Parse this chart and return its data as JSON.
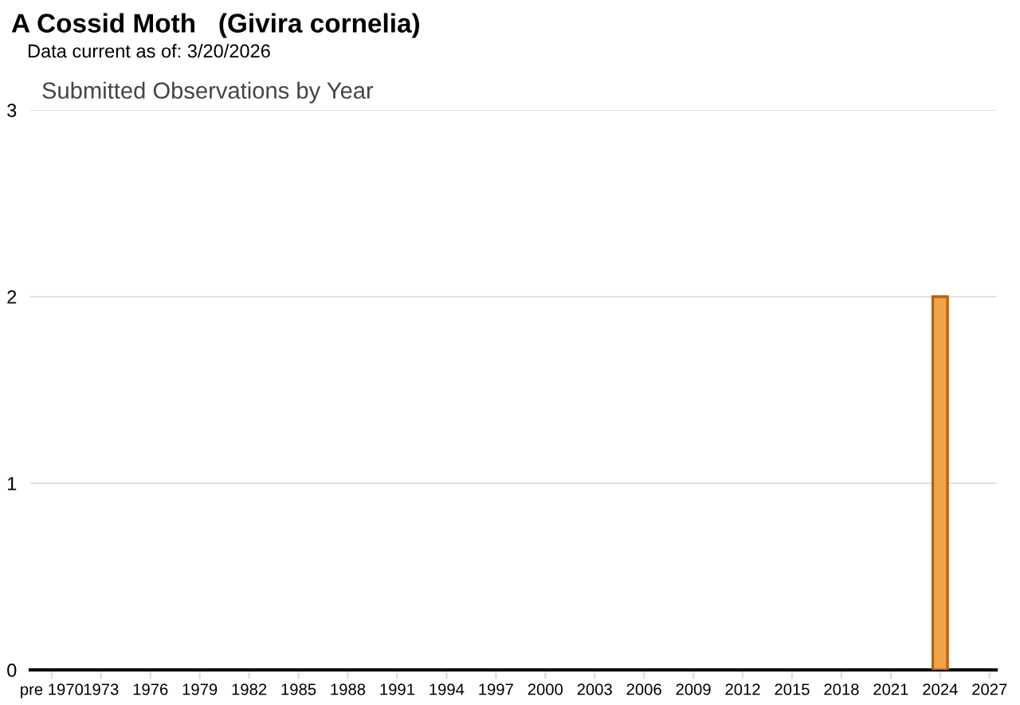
{
  "chart_data": {
    "type": "bar",
    "title": "A Cossid Moth   (Givira cornelia)",
    "subtitle": "Data current as of: 3/20/2026",
    "annotations": [
      "Submitted Observations by Year"
    ],
    "x": [
      2024
    ],
    "values": [
      2
    ],
    "color": "#f0a447",
    "xlim": [
      1968.7,
      2027.4
    ],
    "xticks": [
      {
        "value": 1970,
        "label": "pre 1970"
      },
      1973,
      1976,
      1979,
      1982,
      1985,
      1988,
      1991,
      1994,
      1997,
      2000,
      2003,
      2006,
      2009,
      2012,
      2015,
      2018,
      2021,
      2024,
      2027
    ],
    "ylim": [
      0,
      3
    ],
    "yticks": [
      0,
      1,
      2,
      3
    ],
    "grid": "y"
  }
}
